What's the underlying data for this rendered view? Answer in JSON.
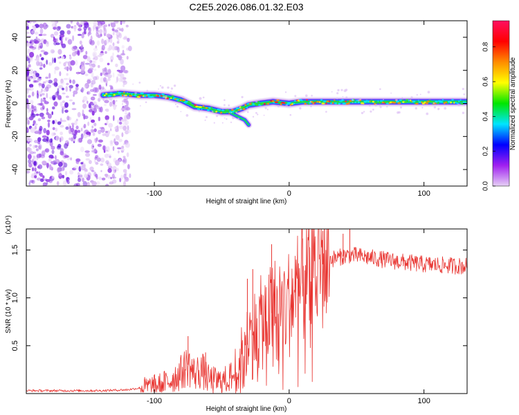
{
  "title": "C2E5.2026.086.01.32.E03",
  "colors": {
    "frame": "#000000",
    "snr_line": "#e8322e",
    "background": "#ffffff"
  },
  "chart_data": [
    {
      "type": "heatmap",
      "xlabel": "Height of straight line (km)",
      "ylabel": "Frequency (Hz)",
      "xlim": [
        -195,
        132
      ],
      "ylim": [
        -50,
        50
      ],
      "x_ticks": [
        -100,
        0,
        100
      ],
      "y_ticks": [
        -40,
        -20,
        0,
        20,
        40
      ],
      "colorbar": {
        "label": "Normalized spectral amplitude",
        "range": [
          0,
          0.95
        ],
        "ticks": [
          "0.0",
          "0.2",
          "0.4",
          "0.6",
          "0.8"
        ],
        "tick_values": [
          0.0,
          0.2,
          0.4,
          0.6,
          0.8
        ],
        "colormap": [
          "#e6d0f5",
          "#a020f0",
          "#0000ff",
          "#00e5ff",
          "#00e600",
          "#ffff00",
          "#ff8c00",
          "#ff0000",
          "#ff1060"
        ]
      },
      "noise_region_x": [
        -195,
        -118
      ],
      "ridge": [
        {
          "x": -138,
          "f": 5
        },
        {
          "x": -125,
          "f": 6
        },
        {
          "x": -110,
          "f": 5
        },
        {
          "x": -100,
          "f": 5
        },
        {
          "x": -90,
          "f": 4
        },
        {
          "x": -80,
          "f": 2
        },
        {
          "x": -70,
          "f": -2
        },
        {
          "x": -60,
          "f": -3
        },
        {
          "x": -50,
          "f": -5
        },
        {
          "x": -42,
          "f": -5
        },
        {
          "x": -35,
          "f": -3
        },
        {
          "x": -30,
          "f": -1
        },
        {
          "x": -22,
          "f": 0
        },
        {
          "x": -12,
          "f": 1
        },
        {
          "x": 0,
          "f": 0
        },
        {
          "x": 10,
          "f": 1
        },
        {
          "x": 25,
          "f": 1
        },
        {
          "x": 50,
          "f": 1
        },
        {
          "x": 80,
          "f": 1
        },
        {
          "x": 110,
          "f": 1
        },
        {
          "x": 132,
          "f": 1
        }
      ],
      "ridge_lower_branch": [
        {
          "x": -45,
          "f": -5
        },
        {
          "x": -38,
          "f": -8
        },
        {
          "x": -33,
          "f": -10
        },
        {
          "x": -30,
          "f": -13
        }
      ],
      "peak_amplitude_x": [
        -18,
        -3
      ]
    },
    {
      "type": "line",
      "xlabel": "Height of straight line (km)",
      "ylabel": "SNR (10 * v/v)",
      "scale_note": "(x10⁴)",
      "xlim": [
        -195,
        132
      ],
      "ylim": [
        0,
        1.72
      ],
      "x_ticks": [
        -100,
        0,
        100
      ],
      "y_ticks": [
        "0.5",
        "1.0",
        "1.5"
      ],
      "y_tick_values": [
        0.5,
        1.0,
        1.5
      ],
      "series": [
        {
          "envelope": [
            {
              "x": -195,
              "y": 0.03
            },
            {
              "x": -140,
              "y": 0.03
            },
            {
              "x": -120,
              "y": 0.04
            },
            {
              "x": -110,
              "y": 0.06
            },
            {
              "x": -100,
              "y": 0.08
            },
            {
              "x": -90,
              "y": 0.12
            },
            {
              "x": -80,
              "y": 0.22
            },
            {
              "x": -75,
              "y": 0.3
            },
            {
              "x": -70,
              "y": 0.2
            },
            {
              "x": -65,
              "y": 0.25
            },
            {
              "x": -60,
              "y": 0.15
            },
            {
              "x": -50,
              "y": 0.12
            },
            {
              "x": -40,
              "y": 0.2
            },
            {
              "x": -35,
              "y": 0.35
            },
            {
              "x": -30,
              "y": 0.55
            },
            {
              "x": -25,
              "y": 0.65
            },
            {
              "x": -20,
              "y": 0.75
            },
            {
              "x": -15,
              "y": 0.8
            },
            {
              "x": -10,
              "y": 0.9
            },
            {
              "x": 0,
              "y": 0.95
            },
            {
              "x": 10,
              "y": 1.15
            },
            {
              "x": 20,
              "y": 1.3
            },
            {
              "x": 30,
              "y": 1.4
            },
            {
              "x": 45,
              "y": 1.45
            },
            {
              "x": 60,
              "y": 1.42
            },
            {
              "x": 80,
              "y": 1.38
            },
            {
              "x": 100,
              "y": 1.35
            },
            {
              "x": 115,
              "y": 1.34
            },
            {
              "x": 132,
              "y": 1.33
            }
          ],
          "spikes": [
            {
              "x": -75,
              "y": 0.6
            },
            {
              "x": -62,
              "y": 0.43
            },
            {
              "x": -31,
              "y": 1.2
            },
            {
              "x": -27,
              "y": 1.3
            },
            {
              "x": -13,
              "y": 1.56
            },
            {
              "x": 10,
              "y": 1.62
            },
            {
              "x": 25,
              "y": 1.7
            },
            {
              "x": 40,
              "y": 1.67
            },
            {
              "x": 45,
              "y": 1.72
            }
          ]
        }
      ]
    }
  ]
}
